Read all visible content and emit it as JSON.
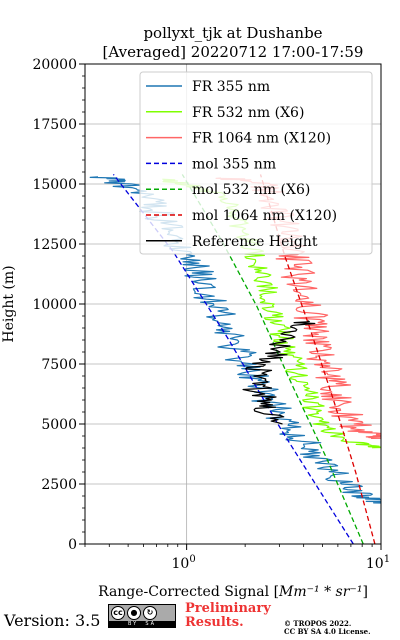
{
  "chart_data": {
    "type": "line",
    "title_line1": "pollyxt_tjk at Dushanbe",
    "title_line2": "[Averaged] 20220712 17:00-17:59",
    "xlabel_prefix": "Range-Corrected Signal [",
    "xlabel_math": "Mm⁻¹ * sr⁻¹",
    "xlabel_suffix": "]",
    "ylabel": "Height (m)",
    "xscale": "log",
    "xlim": [
      0.3,
      10
    ],
    "ylim": [
      0,
      20000
    ],
    "x_ticks": [
      {
        "value": 1,
        "label": "10",
        "sup": "0"
      },
      {
        "value": 10,
        "label": "10",
        "sup": "1"
      }
    ],
    "y_ticks": [
      {
        "value": 0,
        "label": "0"
      },
      {
        "value": 2500,
        "label": "2500"
      },
      {
        "value": 5000,
        "label": "5000"
      },
      {
        "value": 7500,
        "label": "7500"
      },
      {
        "value": 10000,
        "label": "10000"
      },
      {
        "value": 12500,
        "label": "12500"
      },
      {
        "value": 15000,
        "label": "15000"
      },
      {
        "value": 17500,
        "label": "17500"
      },
      {
        "value": 20000,
        "label": "20000"
      }
    ],
    "grid": true,
    "legend_position": "top-right",
    "series": [
      {
        "name": "FR 355 nm",
        "color": "#1f77b4",
        "style": "solid",
        "noise": 0.09,
        "points": [
          [
            10,
            1700
          ],
          [
            9.5,
            1800
          ],
          [
            8.0,
            2000
          ],
          [
            7.0,
            2300
          ],
          [
            6.0,
            2700
          ],
          [
            5.2,
            3200
          ],
          [
            4.5,
            3800
          ],
          [
            3.9,
            4400
          ],
          [
            3.3,
            5000
          ],
          [
            2.9,
            5600
          ],
          [
            2.5,
            6200
          ],
          [
            2.2,
            7000
          ],
          [
            1.9,
            7800
          ],
          [
            1.7,
            8500
          ],
          [
            1.5,
            9400
          ],
          [
            1.35,
            10200
          ],
          [
            1.2,
            11000
          ],
          [
            1.05,
            11700
          ],
          [
            0.95,
            12300
          ],
          [
            0.85,
            12900
          ],
          [
            0.75,
            13500
          ],
          [
            0.65,
            14200
          ],
          [
            0.55,
            14700
          ],
          [
            0.45,
            15100
          ],
          [
            0.35,
            15300
          ]
        ]
      },
      {
        "name": "FR 532 nm (X6)",
        "color": "#7fff00",
        "style": "solid",
        "noise": 0.06,
        "points": [
          [
            10,
            4000
          ],
          [
            8.5,
            4100
          ],
          [
            7.0,
            4300
          ],
          [
            5.8,
            4600
          ],
          [
            5.0,
            5000
          ],
          [
            4.6,
            5500
          ],
          [
            4.3,
            6000
          ],
          [
            4.0,
            6600
          ],
          [
            3.7,
            7200
          ],
          [
            3.4,
            7800
          ],
          [
            3.1,
            8500
          ],
          [
            2.9,
            9300
          ],
          [
            2.7,
            10000
          ],
          [
            2.6,
            10800
          ],
          [
            2.4,
            11500
          ],
          [
            2.2,
            12200
          ],
          [
            2.0,
            12900
          ],
          [
            1.8,
            13600
          ],
          [
            1.6,
            14200
          ],
          [
            1.3,
            14700
          ],
          [
            1.0,
            15000
          ],
          [
            0.75,
            15200
          ]
        ]
      },
      {
        "name": "FR 1064 nm (X120)",
        "color": "#ff6666",
        "style": "solid",
        "noise": 0.09,
        "points": [
          [
            10,
            4400
          ],
          [
            9.2,
            4500
          ],
          [
            8.0,
            4700
          ],
          [
            7.0,
            5100
          ],
          [
            6.3,
            5800
          ],
          [
            5.8,
            6500
          ],
          [
            5.3,
            7300
          ],
          [
            4.9,
            8000
          ],
          [
            4.6,
            8800
          ],
          [
            4.3,
            9600
          ],
          [
            4.0,
            10300
          ],
          [
            3.8,
            11000
          ],
          [
            3.6,
            11700
          ],
          [
            3.4,
            12300
          ],
          [
            3.2,
            13000
          ],
          [
            3.0,
            13700
          ],
          [
            2.8,
            14300
          ],
          [
            2.6,
            14800
          ],
          [
            2.3,
            15100
          ],
          [
            1.5,
            15250
          ]
        ]
      },
      {
        "name": "mol 355 nm",
        "color": "#0000dd",
        "style": "dashed",
        "noise": 0,
        "points": [
          [
            7.2,
            0
          ],
          [
            3.1,
            4700
          ],
          [
            1.65,
            8500
          ],
          [
            0.85,
            12200
          ],
          [
            0.42,
            15400
          ]
        ]
      },
      {
        "name": "mol 532 nm (X6)",
        "color": "#00aa00",
        "style": "dashed",
        "noise": 0,
        "points": [
          [
            8.1,
            0
          ],
          [
            5.3,
            3500
          ],
          [
            3.5,
            6600
          ],
          [
            2.3,
            9900
          ],
          [
            1.5,
            12700
          ],
          [
            0.95,
            15400
          ]
        ]
      },
      {
        "name": "mol 1064 nm (X120)",
        "color": "#dd0000",
        "style": "dashed",
        "noise": 0,
        "points": [
          [
            9.3,
            0
          ],
          [
            7.4,
            3000
          ],
          [
            5.7,
            6000
          ],
          [
            4.3,
            9000
          ],
          [
            3.2,
            12000
          ],
          [
            2.4,
            15400
          ]
        ]
      },
      {
        "name": "Reference Height",
        "color": "#000000",
        "style": "solid",
        "noise": 0.08,
        "points": [
          [
            2.7,
            5000
          ],
          [
            2.6,
            5600
          ],
          [
            2.5,
            6000
          ],
          [
            2.3,
            6500
          ],
          [
            2.2,
            7000
          ],
          [
            3.0,
            8000
          ],
          [
            3.3,
            8500
          ],
          [
            3.6,
            9000
          ],
          [
            4.2,
            9300
          ]
        ]
      }
    ]
  },
  "footer": {
    "version_label": "Version: 3.5",
    "cc_by_label": "BY",
    "cc_sa_label": "SA",
    "preliminary_line1": "Preliminary",
    "preliminary_line2": "Results.",
    "copyright_line1": "© TROPOS 2022.",
    "copyright_line2": "CC BY SA 4.0 License."
  },
  "colors": {
    "preliminary": "#ee3333",
    "grid": "#b0b0b0"
  }
}
